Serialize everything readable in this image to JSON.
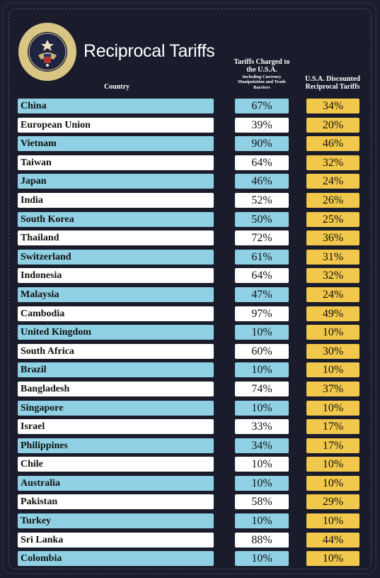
{
  "title": "Reciprocal Tariffs",
  "headers": {
    "country": "Country",
    "charged": "Tariffs Charged to the U.S.A.",
    "charged_sub": "Including Currency Manipulation and Trade Barriers",
    "discounted": "U.S.A. Discounted Reciprocal Tariffs"
  },
  "seal_icon": "presidential-seal-icon",
  "colors": {
    "row_blue": "#8fd0e4",
    "row_white": "#ffffff",
    "discount_gold": "#f1c84b",
    "background": "#1a1c2c"
  },
  "rows": [
    {
      "country": "China",
      "charged": "67%",
      "discounted": "34%"
    },
    {
      "country": "European Union",
      "charged": "39%",
      "discounted": "20%"
    },
    {
      "country": "Vietnam",
      "charged": "90%",
      "discounted": "46%"
    },
    {
      "country": "Taiwan",
      "charged": "64%",
      "discounted": "32%"
    },
    {
      "country": "Japan",
      "charged": "46%",
      "discounted": "24%"
    },
    {
      "country": "India",
      "charged": "52%",
      "discounted": "26%"
    },
    {
      "country": "South Korea",
      "charged": "50%",
      "discounted": "25%"
    },
    {
      "country": "Thailand",
      "charged": "72%",
      "discounted": "36%"
    },
    {
      "country": "Switzerland",
      "charged": "61%",
      "discounted": "31%"
    },
    {
      "country": "Indonesia",
      "charged": "64%",
      "discounted": "32%"
    },
    {
      "country": "Malaysia",
      "charged": "47%",
      "discounted": "24%"
    },
    {
      "country": "Cambodia",
      "charged": "97%",
      "discounted": "49%"
    },
    {
      "country": "United Kingdom",
      "charged": "10%",
      "discounted": "10%"
    },
    {
      "country": "South Africa",
      "charged": "60%",
      "discounted": "30%"
    },
    {
      "country": "Brazil",
      "charged": "10%",
      "discounted": "10%"
    },
    {
      "country": "Bangladesh",
      "charged": "74%",
      "discounted": "37%"
    },
    {
      "country": "Singapore",
      "charged": "10%",
      "discounted": "10%"
    },
    {
      "country": "Israel",
      "charged": "33%",
      "discounted": "17%"
    },
    {
      "country": "Philippines",
      "charged": "34%",
      "discounted": "17%"
    },
    {
      "country": "Chile",
      "charged": "10%",
      "discounted": "10%"
    },
    {
      "country": "Australia",
      "charged": "10%",
      "discounted": "10%"
    },
    {
      "country": "Pakistan",
      "charged": "58%",
      "discounted": "29%"
    },
    {
      "country": "Turkey",
      "charged": "10%",
      "discounted": "10%"
    },
    {
      "country": "Sri Lanka",
      "charged": "88%",
      "discounted": "44%"
    },
    {
      "country": "Colombia",
      "charged": "10%",
      "discounted": "10%"
    }
  ]
}
